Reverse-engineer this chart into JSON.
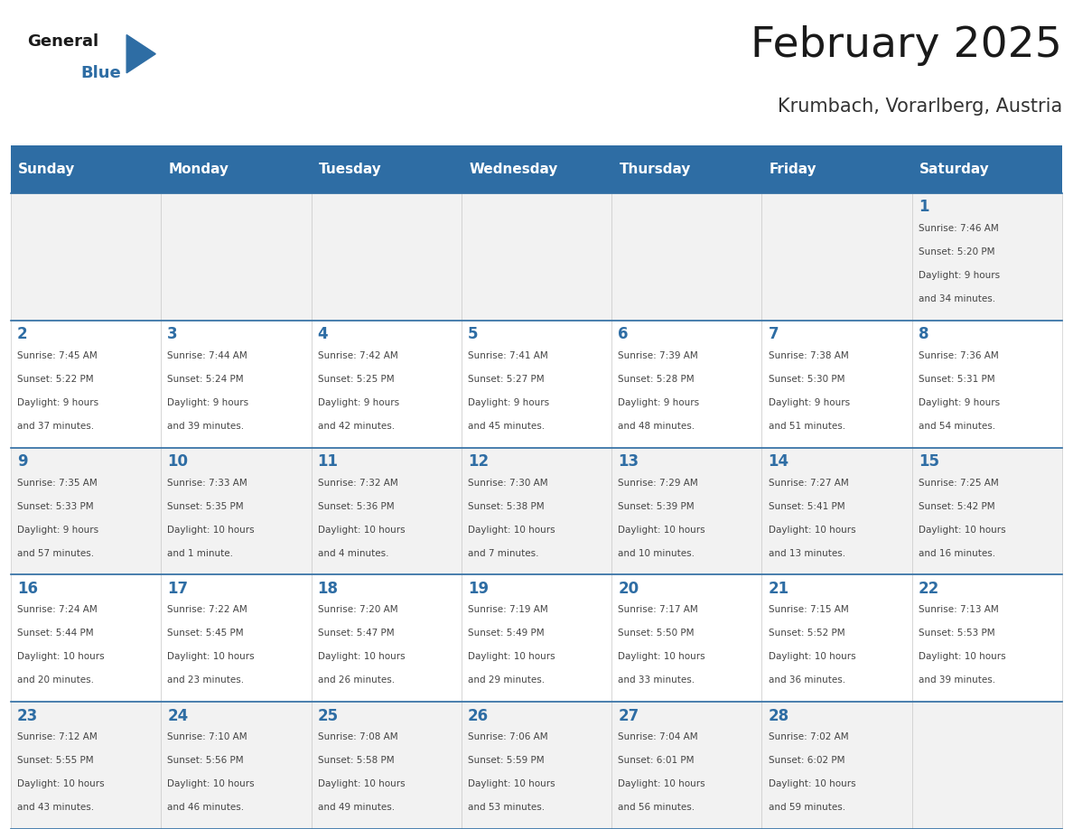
{
  "title": "February 2025",
  "subtitle": "Krumbach, Vorarlberg, Austria",
  "days_of_week": [
    "Sunday",
    "Monday",
    "Tuesday",
    "Wednesday",
    "Thursday",
    "Friday",
    "Saturday"
  ],
  "header_bg": "#2E6DA4",
  "header_text": "#FFFFFF",
  "cell_bg_odd": "#F2F2F2",
  "cell_bg_even": "#FFFFFF",
  "cell_border": "#CCCCCC",
  "day_num_color": "#2E6DA4",
  "info_color": "#444444",
  "title_color": "#1a1a1a",
  "subtitle_color": "#333333",
  "logo_general_color": "#1a1a1a",
  "logo_blue_color": "#2E6DA4",
  "weeks": [
    [
      null,
      null,
      null,
      null,
      null,
      null,
      1
    ],
    [
      2,
      3,
      4,
      5,
      6,
      7,
      8
    ],
    [
      9,
      10,
      11,
      12,
      13,
      14,
      15
    ],
    [
      16,
      17,
      18,
      19,
      20,
      21,
      22
    ],
    [
      23,
      24,
      25,
      26,
      27,
      28,
      null
    ]
  ],
  "day_data": {
    "1": {
      "sunrise": "7:46 AM",
      "sunset": "5:20 PM",
      "daylight": "9 hours and 34 minutes."
    },
    "2": {
      "sunrise": "7:45 AM",
      "sunset": "5:22 PM",
      "daylight": "9 hours and 37 minutes."
    },
    "3": {
      "sunrise": "7:44 AM",
      "sunset": "5:24 PM",
      "daylight": "9 hours and 39 minutes."
    },
    "4": {
      "sunrise": "7:42 AM",
      "sunset": "5:25 PM",
      "daylight": "9 hours and 42 minutes."
    },
    "5": {
      "sunrise": "7:41 AM",
      "sunset": "5:27 PM",
      "daylight": "9 hours and 45 minutes."
    },
    "6": {
      "sunrise": "7:39 AM",
      "sunset": "5:28 PM",
      "daylight": "9 hours and 48 minutes."
    },
    "7": {
      "sunrise": "7:38 AM",
      "sunset": "5:30 PM",
      "daylight": "9 hours and 51 minutes."
    },
    "8": {
      "sunrise": "7:36 AM",
      "sunset": "5:31 PM",
      "daylight": "9 hours and 54 minutes."
    },
    "9": {
      "sunrise": "7:35 AM",
      "sunset": "5:33 PM",
      "daylight": "9 hours and 57 minutes."
    },
    "10": {
      "sunrise": "7:33 AM",
      "sunset": "5:35 PM",
      "daylight": "10 hours and 1 minute."
    },
    "11": {
      "sunrise": "7:32 AM",
      "sunset": "5:36 PM",
      "daylight": "10 hours and 4 minutes."
    },
    "12": {
      "sunrise": "7:30 AM",
      "sunset": "5:38 PM",
      "daylight": "10 hours and 7 minutes."
    },
    "13": {
      "sunrise": "7:29 AM",
      "sunset": "5:39 PM",
      "daylight": "10 hours and 10 minutes."
    },
    "14": {
      "sunrise": "7:27 AM",
      "sunset": "5:41 PM",
      "daylight": "10 hours and 13 minutes."
    },
    "15": {
      "sunrise": "7:25 AM",
      "sunset": "5:42 PM",
      "daylight": "10 hours and 16 minutes."
    },
    "16": {
      "sunrise": "7:24 AM",
      "sunset": "5:44 PM",
      "daylight": "10 hours and 20 minutes."
    },
    "17": {
      "sunrise": "7:22 AM",
      "sunset": "5:45 PM",
      "daylight": "10 hours and 23 minutes."
    },
    "18": {
      "sunrise": "7:20 AM",
      "sunset": "5:47 PM",
      "daylight": "10 hours and 26 minutes."
    },
    "19": {
      "sunrise": "7:19 AM",
      "sunset": "5:49 PM",
      "daylight": "10 hours and 29 minutes."
    },
    "20": {
      "sunrise": "7:17 AM",
      "sunset": "5:50 PM",
      "daylight": "10 hours and 33 minutes."
    },
    "21": {
      "sunrise": "7:15 AM",
      "sunset": "5:52 PM",
      "daylight": "10 hours and 36 minutes."
    },
    "22": {
      "sunrise": "7:13 AM",
      "sunset": "5:53 PM",
      "daylight": "10 hours and 39 minutes."
    },
    "23": {
      "sunrise": "7:12 AM",
      "sunset": "5:55 PM",
      "daylight": "10 hours and 43 minutes."
    },
    "24": {
      "sunrise": "7:10 AM",
      "sunset": "5:56 PM",
      "daylight": "10 hours and 46 minutes."
    },
    "25": {
      "sunrise": "7:08 AM",
      "sunset": "5:58 PM",
      "daylight": "10 hours and 49 minutes."
    },
    "26": {
      "sunrise": "7:06 AM",
      "sunset": "5:59 PM",
      "daylight": "10 hours and 53 minutes."
    },
    "27": {
      "sunrise": "7:04 AM",
      "sunset": "6:01 PM",
      "daylight": "10 hours and 56 minutes."
    },
    "28": {
      "sunrise": "7:02 AM",
      "sunset": "6:02 PM",
      "daylight": "10 hours and 59 minutes."
    }
  }
}
